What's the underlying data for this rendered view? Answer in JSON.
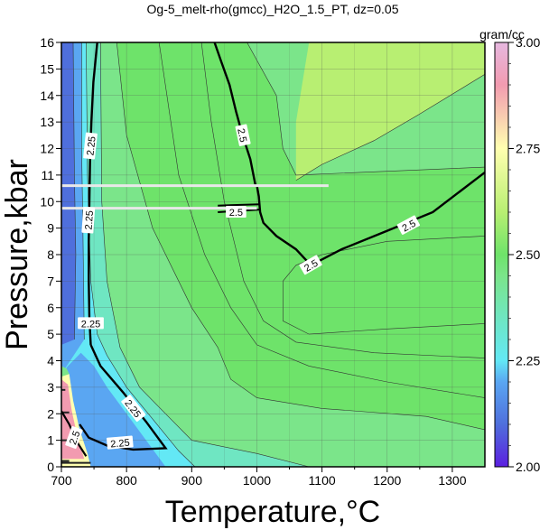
{
  "chart_data": {
    "type": "heatmap",
    "title": "Og-5_melt-rho(gmcc)_H2O_1.5_PT, dz=0.05",
    "xlabel": "Temperature,°C",
    "ylabel": "Pressure,kbar",
    "xlim": [
      700,
      1350
    ],
    "ylim": [
      0,
      16
    ],
    "x_ticks": [
      700,
      800,
      900,
      1000,
      1100,
      1200,
      1300
    ],
    "y_ticks": [
      0,
      1,
      2,
      3,
      4,
      5,
      6,
      7,
      8,
      9,
      10,
      11,
      12,
      13,
      14,
      15,
      16
    ],
    "grid": true,
    "colorbar": {
      "unit": "gram/cc",
      "min": 2.0,
      "max": 3.0,
      "ticks": [
        "2.00",
        "2.25",
        "2.50",
        "2.75",
        "3.00"
      ],
      "tick_values": [
        2.0,
        2.25,
        2.5,
        2.75,
        3.0
      ]
    },
    "contour_interval": 0.05,
    "labeled_contours": [
      {
        "value": 2.25,
        "label": "2.25"
      },
      {
        "value": 2.5,
        "label": "2.5"
      }
    ],
    "contour_label_positions": [
      {
        "label": "2.25",
        "x": 745,
        "y": 12.1,
        "angle": -84
      },
      {
        "label": "2.25",
        "x": 742,
        "y": 9.3,
        "angle": -86
      },
      {
        "label": "2.25",
        "x": 745,
        "y": 5.4,
        "angle": 0
      },
      {
        "label": "2.25",
        "x": 810,
        "y": 2.2,
        "angle": 52
      },
      {
        "label": "2.25",
        "x": 790,
        "y": 0.9,
        "angle": -5
      },
      {
        "label": "2.5",
        "x": 978,
        "y": 12.5,
        "angle": 78
      },
      {
        "label": "2.5",
        "x": 968,
        "y": 9.6,
        "angle": 0
      },
      {
        "label": "2.5",
        "x": 1083,
        "y": 7.6,
        "angle": -30
      },
      {
        "label": "2.5",
        "x": 1233,
        "y": 9.1,
        "angle": -28
      },
      {
        "label": "2.5",
        "x": 720,
        "y": 1.1,
        "angle": -70
      }
    ],
    "contour_2_5_main": [
      [
        1000,
        10.6
      ],
      [
        1003,
        10.2
      ],
      [
        1005,
        9.6
      ],
      [
        1010,
        9.2
      ],
      [
        1030,
        8.7
      ],
      [
        1060,
        8.2
      ],
      [
        1083,
        7.6
      ],
      [
        1130,
        8.2
      ],
      [
        1200,
        8.9
      ],
      [
        1270,
        9.6
      ],
      [
        1350,
        11.1
      ]
    ],
    "contour_2_5_upper": [
      [
        935,
        16
      ],
      [
        945,
        15.3
      ],
      [
        958,
        14.4
      ],
      [
        968,
        13.4
      ],
      [
        978,
        12.5
      ],
      [
        990,
        11.6
      ],
      [
        998,
        10.6
      ]
    ],
    "contour_2_25_left": [
      [
        755,
        16
      ],
      [
        749,
        14.5
      ],
      [
        746,
        13
      ],
      [
        744,
        11.5
      ],
      [
        743,
        10
      ],
      [
        742,
        8.5
      ],
      [
        742,
        7
      ],
      [
        743,
        5.6
      ],
      [
        745,
        4.6
      ]
    ],
    "contour_2_25_low": [
      [
        745,
        4.6
      ],
      [
        760,
        3.8
      ],
      [
        795,
        2.8
      ],
      [
        830,
        1.7
      ],
      [
        860,
        0.7
      ],
      [
        810,
        0.65
      ],
      [
        770,
        0.8
      ],
      [
        742,
        1.1
      ],
      [
        728,
        1.6
      ]
    ],
    "horizontal_lines": [
      {
        "y": 10.6,
        "x_start": 700,
        "x_end": 1110
      },
      {
        "y": 9.75,
        "x_start": 700,
        "x_end": 1000
      }
    ]
  },
  "colors": {
    "c200": "#5b1fe0",
    "c210": "#4f6fdc",
    "c220": "#5aa6f2",
    "c225": "#63e8f5",
    "c235": "#6fe6c2",
    "c245": "#7be58a",
    "c250": "#6ee36a",
    "c260": "#b8ef72",
    "c275": "#ffffb0",
    "c290": "#f29bb0",
    "c300": "#e6b8e0"
  }
}
